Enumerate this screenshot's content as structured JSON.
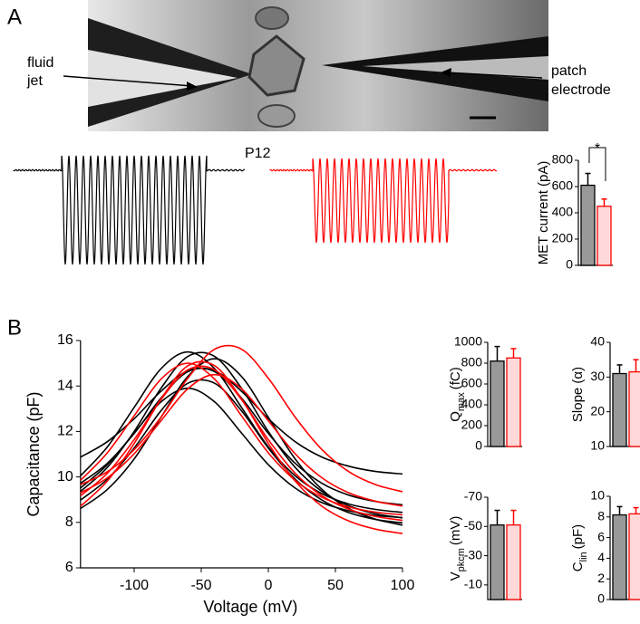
{
  "panel_labels": [
    "A",
    "B"
  ],
  "image_labels": {
    "jet": [
      "fluid",
      "jet"
    ],
    "electrode": [
      "patch",
      "electrode"
    ]
  },
  "trace_label": "P12",
  "chart_data": [
    {
      "type": "bar",
      "ylabel": "MET current (pA)",
      "values": [
        610,
        450
      ],
      "errors": [
        90,
        55
      ],
      "colors": [
        "#999999",
        "#ffd9d9"
      ],
      "edgecolors": [
        "#000000",
        "#ff0000"
      ],
      "ylim": [
        0,
        800
      ],
      "yticks": [
        0,
        200,
        400,
        600,
        800
      ],
      "annotation": "*"
    },
    {
      "type": "line",
      "xlabel": "Voltage (mV)",
      "ylabel": "Capacitance (pF)",
      "x": [
        -140,
        -120,
        -100,
        -80,
        -60,
        -40,
        -20,
        0,
        20,
        40,
        60,
        80,
        100
      ],
      "xlim": [
        -140,
        100
      ],
      "xticks": [
        -100,
        -50,
        0,
        50,
        100
      ],
      "ylim": [
        6,
        16
      ],
      "yticks": [
        6,
        8,
        10,
        12,
        14,
        16
      ],
      "series": [
        {
          "color": "#000000",
          "values": [
            10.87,
            11.55,
            12.56,
            13.77,
            14.67,
            14.67,
            13.77,
            12.56,
            11.55,
            10.87,
            10.47,
            10.24,
            10.13
          ]
        },
        {
          "color": "#000000",
          "values": [
            10.05,
            11.32,
            13.06,
            14.76,
            15.5,
            14.76,
            13.06,
            11.32,
            10.05,
            9.26,
            8.81,
            8.57,
            8.44
          ]
        },
        {
          "color": "#000000",
          "values": [
            9.36,
            10.42,
            12.0,
            13.9,
            15.3,
            15.3,
            13.9,
            12.0,
            10.42,
            9.36,
            8.73,
            8.38,
            8.2
          ]
        },
        {
          "color": "#000000",
          "values": [
            8.98,
            9.9,
            11.27,
            12.91,
            14.12,
            14.12,
            12.91,
            11.27,
            9.9,
            8.98,
            8.43,
            8.13,
            7.98
          ]
        },
        {
          "color": "#000000",
          "values": [
            9.51,
            10.54,
            11.93,
            13.3,
            13.9,
            13.3,
            11.93,
            10.54,
            9.51,
            8.87,
            8.51,
            8.31,
            8.21
          ]
        },
        {
          "color": "#000000",
          "values": [
            8.61,
            9.45,
            10.79,
            12.62,
            14.42,
            15.2,
            14.42,
            12.62,
            10.79,
            9.45,
            8.61,
            8.14,
            7.88
          ]
        },
        {
          "color": "#000000",
          "values": [
            9.72,
            10.6,
            11.91,
            13.47,
            14.63,
            14.63,
            13.47,
            11.91,
            10.6,
            9.72,
            9.2,
            8.92,
            8.77
          ]
        },
        {
          "color": "#ff0000",
          "values": [
            9.66,
            10.23,
            11.2,
            12.63,
            14.34,
            15.62,
            15.62,
            14.34,
            12.63,
            11.2,
            10.23,
            9.66,
            9.35
          ]
        },
        {
          "color": "#ff0000",
          "values": [
            8.71,
            9.82,
            11.47,
            13.43,
            14.89,
            14.89,
            13.43,
            11.47,
            9.82,
            8.71,
            8.06,
            7.7,
            7.51
          ]
        },
        {
          "color": "#ff0000",
          "values": [
            9.85,
            11.06,
            12.69,
            14.3,
            15.0,
            14.3,
            12.69,
            11.06,
            9.85,
            9.1,
            8.68,
            8.45,
            8.33
          ]
        },
        {
          "color": "#ff0000",
          "values": [
            9.3,
            9.96,
            11.02,
            12.47,
            13.88,
            14.5,
            13.88,
            12.47,
            11.02,
            9.96,
            9.3,
            8.93,
            8.72
          ]
        },
        {
          "color": "#ff0000",
          "values": [
            9.17,
            10.16,
            11.64,
            13.4,
            14.71,
            14.71,
            13.4,
            11.64,
            10.16,
            9.17,
            8.58,
            8.26,
            8.09
          ]
        }
      ]
    },
    {
      "type": "bar",
      "ylabel": [
        "Q",
        "max",
        "(fC)"
      ],
      "values": [
        820,
        850
      ],
      "errors": [
        140,
        90
      ],
      "colors": [
        "#999999",
        "#ffd9d9"
      ],
      "edgecolors": [
        "#000000",
        "#ff0000"
      ],
      "ylim": [
        0,
        1000
      ],
      "yticks": [
        0,
        200,
        400,
        600,
        800,
        1000
      ]
    },
    {
      "type": "bar",
      "ylabel": "Slope (α)",
      "values": [
        31,
        31.5
      ],
      "errors": [
        2.5,
        3.5
      ],
      "colors": [
        "#999999",
        "#ffd9d9"
      ],
      "edgecolors": [
        "#000000",
        "#ff0000"
      ],
      "ylim": [
        10,
        40
      ],
      "yticks": [
        10,
        20,
        30,
        40
      ]
    },
    {
      "type": "bar",
      "ylabel": [
        "V",
        "pkcm",
        "(mV)"
      ],
      "values": [
        -51,
        -51
      ],
      "errors": [
        10,
        10
      ],
      "colors": [
        "#999999",
        "#ffd9d9"
      ],
      "edgecolors": [
        "#000000",
        "#ff0000"
      ],
      "ylim": [
        0,
        -70
      ],
      "yticks": [
        -70,
        -50,
        -30,
        -10
      ]
    },
    {
      "type": "bar",
      "ylabel": [
        "C",
        "lin",
        "(pF)"
      ],
      "values": [
        8.2,
        8.3
      ],
      "errors": [
        0.8,
        0.6
      ],
      "colors": [
        "#999999",
        "#ffd9d9"
      ],
      "edgecolors": [
        "#000000",
        "#ff0000"
      ],
      "ylim": [
        0,
        10
      ],
      "yticks": [
        0,
        2,
        4,
        6,
        8,
        10
      ]
    }
  ]
}
